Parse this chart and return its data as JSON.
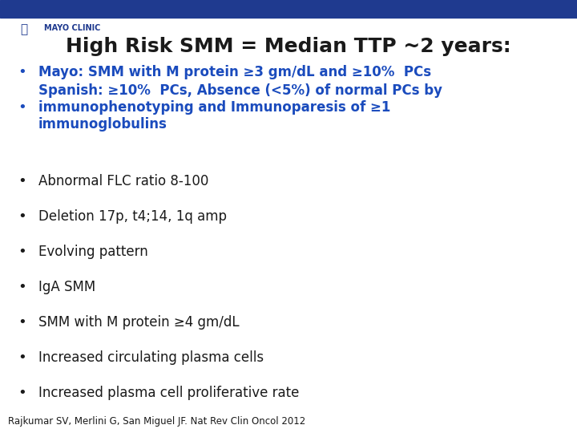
{
  "title": "High Risk SMM = Median TTP ~2 years:",
  "title_color": "#1a1a1a",
  "title_fontsize": 18,
  "header_bar_color": "#1f3a8f",
  "background_color": "#ffffff",
  "mayo_clinic_text": "MAYO CLINIC",
  "mayo_text_color": "#1f3a8f",
  "bullet_items": [
    {
      "text": "Mayo: SMM with M protein ≥3 gm/dL and ≥10%  PCs",
      "color": "#1a4bbd",
      "bold": true,
      "n_lines": 1
    },
    {
      "text": "Spanish: ≥10%  PCs, Absence (<5%) of normal PCs by\nimmunophenotyping and Immunoparesis of ≥1\nimmunoglobulins",
      "color": "#1a4bbd",
      "bold": true,
      "n_lines": 3
    },
    {
      "text": "Abnormal FLC ratio 8-100",
      "color": "#1a1a1a",
      "bold": false,
      "n_lines": 1
    },
    {
      "text": "Deletion 17p, t4;14, 1q amp",
      "color": "#1a1a1a",
      "bold": false,
      "n_lines": 1
    },
    {
      "text": "Evolving pattern",
      "color": "#1a1a1a",
      "bold": false,
      "n_lines": 1
    },
    {
      "text": "IgA SMM",
      "color": "#1a1a1a",
      "bold": false,
      "n_lines": 1
    },
    {
      "text": "SMM with M protein ≥4 gm/dL",
      "color": "#1a1a1a",
      "bold": false,
      "n_lines": 1
    },
    {
      "text": "Increased circulating plasma cells",
      "color": "#1a1a1a",
      "bold": false,
      "n_lines": 1
    },
    {
      "text": "Increased plasma cell proliferative rate",
      "color": "#1a1a1a",
      "bold": false,
      "n_lines": 1
    }
  ],
  "footer_text": "Rajkumar SV, Merlini G, San Miguel JF. Nat Rev Clin Oncol 2012",
  "footer_color": "#1a1a1a",
  "footer_fontsize": 8.5,
  "bullet_char": "•"
}
